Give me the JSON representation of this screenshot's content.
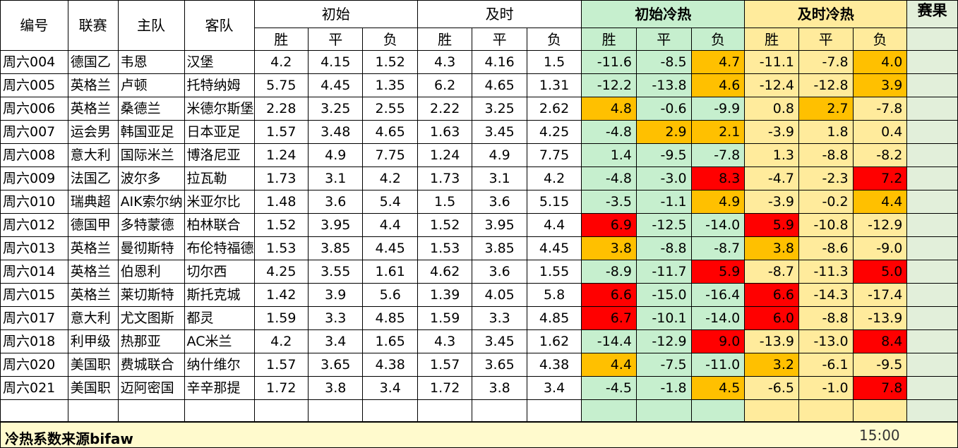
{
  "header": {
    "col_id": "编号",
    "col_league": "联赛",
    "col_home": "主队",
    "col_away": "客队",
    "group_initial": "初始",
    "group_live": "及时",
    "group_initial_heat": "初始冷热",
    "group_live_heat": "及时冷热",
    "col_result": "赛果",
    "win": "胜",
    "draw": "平",
    "lose": "负"
  },
  "colors": {
    "green": "#c6efce",
    "yellow": "#ffeb9c",
    "orange": "#ffc000",
    "red": "#ff0000"
  },
  "rows": [
    {
      "id": "周六004",
      "league": "德国乙",
      "home": "韦恩",
      "away": "汉堡",
      "i": [
        "4.2",
        "4.15",
        "1.52"
      ],
      "l": [
        "4.3",
        "4.16",
        "1.5"
      ],
      "ih": [
        "-11.6",
        "-8.5",
        "4.7"
      ],
      "ihc": [
        "g",
        "g",
        "o"
      ],
      "lh": [
        "-11.1",
        "-7.8",
        "4.0"
      ],
      "lhc": [
        "y",
        "y",
        "o"
      ]
    },
    {
      "id": "周六005",
      "league": "英格兰",
      "home": "卢顿",
      "away": "托特纳姆",
      "i": [
        "5.75",
        "4.45",
        "1.35"
      ],
      "l": [
        "6.2",
        "4.65",
        "1.31"
      ],
      "ih": [
        "-12.2",
        "-13.8",
        "4.6"
      ],
      "ihc": [
        "g",
        "g",
        "o"
      ],
      "lh": [
        "-12.4",
        "-12.8",
        "3.9"
      ],
      "lhc": [
        "y",
        "y",
        "o"
      ]
    },
    {
      "id": "周六006",
      "league": "英格兰",
      "home": "桑德兰",
      "away": "米德尔斯堡",
      "i": [
        "2.28",
        "3.25",
        "2.55"
      ],
      "l": [
        "2.22",
        "3.25",
        "2.62"
      ],
      "ih": [
        "4.8",
        "-0.6",
        "-9.9"
      ],
      "ihc": [
        "o",
        "g",
        "g"
      ],
      "lh": [
        "0.8",
        "2.7",
        "-7.8"
      ],
      "lhc": [
        "y",
        "o",
        "y"
      ]
    },
    {
      "id": "周六007",
      "league": "运会男",
      "home": "韩国亚足",
      "away": "日本亚足",
      "i": [
        "1.57",
        "3.48",
        "4.65"
      ],
      "l": [
        "1.63",
        "3.45",
        "4.25"
      ],
      "ih": [
        "-4.8",
        "2.9",
        "2.1"
      ],
      "ihc": [
        "g",
        "o",
        "o"
      ],
      "lh": [
        "-3.9",
        "1.8",
        "0.4"
      ],
      "lhc": [
        "y",
        "y",
        "y"
      ]
    },
    {
      "id": "周六008",
      "league": "意大利",
      "home": "国际米兰",
      "away": "博洛尼亚",
      "i": [
        "1.24",
        "4.9",
        "7.75"
      ],
      "l": [
        "1.24",
        "4.9",
        "7.75"
      ],
      "ih": [
        "1.4",
        "-9.5",
        "-7.8"
      ],
      "ihc": [
        "g",
        "g",
        "g"
      ],
      "lh": [
        "1.3",
        "-8.8",
        "-8.2"
      ],
      "lhc": [
        "y",
        "y",
        "y"
      ]
    },
    {
      "id": "周六009",
      "league": "法国乙",
      "home": "波尔多",
      "away": "拉瓦勒",
      "i": [
        "1.73",
        "3.1",
        "4.2"
      ],
      "l": [
        "1.73",
        "3.1",
        "4.2"
      ],
      "ih": [
        "-4.8",
        "-3.0",
        "8.3"
      ],
      "ihc": [
        "g",
        "g",
        "rd"
      ],
      "lh": [
        "-4.7",
        "-2.3",
        "7.2"
      ],
      "lhc": [
        "y",
        "y",
        "rd"
      ]
    },
    {
      "id": "周六010",
      "league": "瑞典超",
      "home": "AIK索尔纳",
      "away": "米亚尔比",
      "i": [
        "1.48",
        "3.6",
        "5.4"
      ],
      "l": [
        "1.5",
        "3.6",
        "5.15"
      ],
      "ih": [
        "-3.5",
        "-1.1",
        "4.9"
      ],
      "ihc": [
        "g",
        "g",
        "o"
      ],
      "lh": [
        "-3.9",
        "-0.2",
        "4.4"
      ],
      "lhc": [
        "y",
        "y",
        "o"
      ]
    },
    {
      "id": "周六012",
      "league": "德国甲",
      "home": "多特蒙德",
      "away": "柏林联合",
      "i": [
        "1.52",
        "3.95",
        "4.4"
      ],
      "l": [
        "1.52",
        "3.95",
        "4.4"
      ],
      "ih": [
        "6.9",
        "-12.5",
        "-14.0"
      ],
      "ihc": [
        "rd",
        "g",
        "g"
      ],
      "lh": [
        "5.9",
        "-10.8",
        "-12.9"
      ],
      "lhc": [
        "rd",
        "y",
        "y"
      ]
    },
    {
      "id": "周六013",
      "league": "英格兰",
      "home": "曼彻斯特",
      "away": "布伦特福德",
      "i": [
        "1.53",
        "3.85",
        "4.45"
      ],
      "l": [
        "1.53",
        "3.85",
        "4.45"
      ],
      "ih": [
        "3.8",
        "-8.8",
        "-8.7"
      ],
      "ihc": [
        "o",
        "g",
        "g"
      ],
      "lh": [
        "3.8",
        "-8.6",
        "-9.0"
      ],
      "lhc": [
        "o",
        "y",
        "y"
      ]
    },
    {
      "id": "周六014",
      "league": "英格兰",
      "home": "伯恩利",
      "away": "切尔西",
      "i": [
        "4.25",
        "3.55",
        "1.61"
      ],
      "l": [
        "4.62",
        "3.6",
        "1.55"
      ],
      "ih": [
        "-8.9",
        "-11.7",
        "5.9"
      ],
      "ihc": [
        "g",
        "g",
        "rd"
      ],
      "lh": [
        "-8.7",
        "-11.3",
        "5.0"
      ],
      "lhc": [
        "y",
        "y",
        "rd"
      ]
    },
    {
      "id": "周六015",
      "league": "英格兰",
      "home": "莱切斯特",
      "away": "斯托克城",
      "i": [
        "1.42",
        "3.9",
        "5.6"
      ],
      "l": [
        "1.39",
        "4.05",
        "5.8"
      ],
      "ih": [
        "6.6",
        "-15.0",
        "-16.4"
      ],
      "ihc": [
        "rd",
        "g",
        "g"
      ],
      "lh": [
        "6.6",
        "-14.3",
        "-17.4"
      ],
      "lhc": [
        "rd",
        "y",
        "y"
      ]
    },
    {
      "id": "周六017",
      "league": "意大利",
      "home": "尤文图斯",
      "away": "都灵",
      "i": [
        "1.59",
        "3.3",
        "4.85"
      ],
      "l": [
        "1.59",
        "3.3",
        "4.85"
      ],
      "ih": [
        "6.7",
        "-10.1",
        "-14.0"
      ],
      "ihc": [
        "rd",
        "g",
        "g"
      ],
      "lh": [
        "6.0",
        "-8.8",
        "-13.9"
      ],
      "lhc": [
        "rd",
        "y",
        "y"
      ]
    },
    {
      "id": "周六018",
      "league": "利甲级",
      "home": "热那亚",
      "away": "AC米兰",
      "i": [
        "4.2",
        "3.4",
        "1.65"
      ],
      "l": [
        "4.3",
        "3.45",
        "1.62"
      ],
      "ih": [
        "-14.4",
        "-12.9",
        "9.0"
      ],
      "ihc": [
        "g",
        "g",
        "rd"
      ],
      "lh": [
        "-13.9",
        "-13.0",
        "8.4"
      ],
      "lhc": [
        "y",
        "y",
        "rd"
      ]
    },
    {
      "id": "周六020",
      "league": "美国职",
      "home": "费城联合",
      "away": "纳什维尔",
      "i": [
        "1.57",
        "3.65",
        "4.38"
      ],
      "l": [
        "1.57",
        "3.65",
        "4.38"
      ],
      "ih": [
        "4.4",
        "-7.5",
        "-11.0"
      ],
      "ihc": [
        "o",
        "g",
        "g"
      ],
      "lh": [
        "3.2",
        "-6.1",
        "-9.5"
      ],
      "lhc": [
        "o",
        "y",
        "y"
      ]
    },
    {
      "id": "周六021",
      "league": "美国职",
      "home": "迈阿密国",
      "away": "辛辛那提",
      "i": [
        "1.72",
        "3.8",
        "3.4"
      ],
      "l": [
        "1.72",
        "3.8",
        "3.4"
      ],
      "ih": [
        "-4.5",
        "-1.8",
        "4.5"
      ],
      "ihc": [
        "g",
        "g",
        "o"
      ],
      "lh": [
        "-6.5",
        "-1.0",
        "7.8"
      ],
      "lhc": [
        "y",
        "y",
        "rd"
      ]
    }
  ],
  "footer": {
    "source": "冷热系数来源bifaw",
    "time": "15:00"
  }
}
